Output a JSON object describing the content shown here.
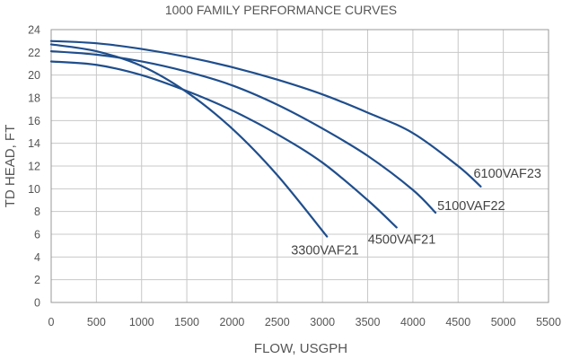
{
  "chart_data": {
    "type": "line",
    "title": "1000 FAMILY PERFORMANCE CURVES",
    "xlabel": "FLOW, USGPH",
    "ylabel": "TD HEAD, FT",
    "xlim": [
      0,
      5500
    ],
    "ylim": [
      0,
      24
    ],
    "x_ticks": [
      "0",
      "500",
      "1000",
      "1500",
      "2000",
      "2500",
      "3000",
      "3500",
      "4000",
      "4500",
      "5000",
      "5500"
    ],
    "y_ticks": [
      "0",
      "2",
      "4",
      "6",
      "8",
      "10",
      "12",
      "14",
      "16",
      "18",
      "20",
      "22",
      "24"
    ],
    "grid": true,
    "legend": "labels at curve ends",
    "line_color": "#1f4e8c",
    "series": [
      {
        "name": "3300VAF21",
        "x": [
          0,
          500,
          1000,
          1500,
          2000,
          2500,
          3050
        ],
        "y": [
          22.7,
          22.1,
          20.8,
          18.5,
          15.3,
          11.2,
          5.8
        ]
      },
      {
        "name": "4500VAF21",
        "x": [
          0,
          500,
          1000,
          1500,
          2000,
          2500,
          3000,
          3500,
          3820
        ],
        "y": [
          21.2,
          20.9,
          20.0,
          18.6,
          16.9,
          14.8,
          12.3,
          9.0,
          6.6
        ]
      },
      {
        "name": "5100VAF22",
        "x": [
          0,
          500,
          1000,
          1500,
          2000,
          2500,
          3000,
          3500,
          4000,
          4250
        ],
        "y": [
          22.1,
          21.8,
          21.2,
          20.3,
          19.1,
          17.4,
          15.3,
          12.9,
          9.9,
          7.9
        ]
      },
      {
        "name": "6100VAF23",
        "x": [
          0,
          500,
          1000,
          1500,
          2000,
          2500,
          3000,
          3500,
          4000,
          4500,
          4750
        ],
        "y": [
          23.0,
          22.8,
          22.3,
          21.6,
          20.7,
          19.6,
          18.3,
          16.7,
          14.9,
          12.0,
          10.2
        ]
      }
    ]
  }
}
